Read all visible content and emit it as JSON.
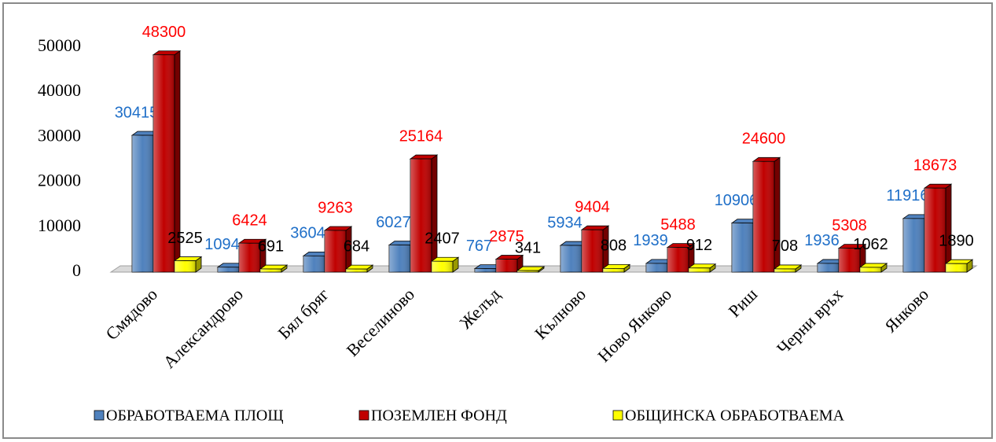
{
  "chart_data": {
    "type": "bar3d",
    "categories": [
      "Смядово",
      "Александрово",
      "Бял бряг",
      "Веселиново",
      "Желъд",
      "Кълново",
      "Ново Янково",
      "Риш",
      "Черни връх",
      "Янково"
    ],
    "series": [
      {
        "name": "ОБРАБОТВАЕМА ПЛОЩ",
        "color": "#4f81bd",
        "label_color": "#1f6fc8",
        "values": [
          30415,
          1094,
          3604,
          6027,
          767,
          5934,
          1939,
          10906,
          1936,
          11916
        ]
      },
      {
        "name": "ПОЗЕМЛЕН ФОНД",
        "color": "#c00000",
        "label_color": "#ff0000",
        "values": [
          48300,
          6424,
          9263,
          25164,
          2875,
          9404,
          5488,
          24600,
          5308,
          18673
        ]
      },
      {
        "name": "ОБЩИНСКА ОБРАБОТВАЕМА",
        "color": "#ffff00",
        "label_color": "#000000",
        "values": [
          2525,
          691,
          684,
          2407,
          341,
          808,
          912,
          708,
          1062,
          1890
        ]
      }
    ],
    "ylim": [
      0,
      50000
    ],
    "yticks": [
      0,
      10000,
      20000,
      30000,
      40000,
      50000
    ],
    "legend": "bottom"
  }
}
